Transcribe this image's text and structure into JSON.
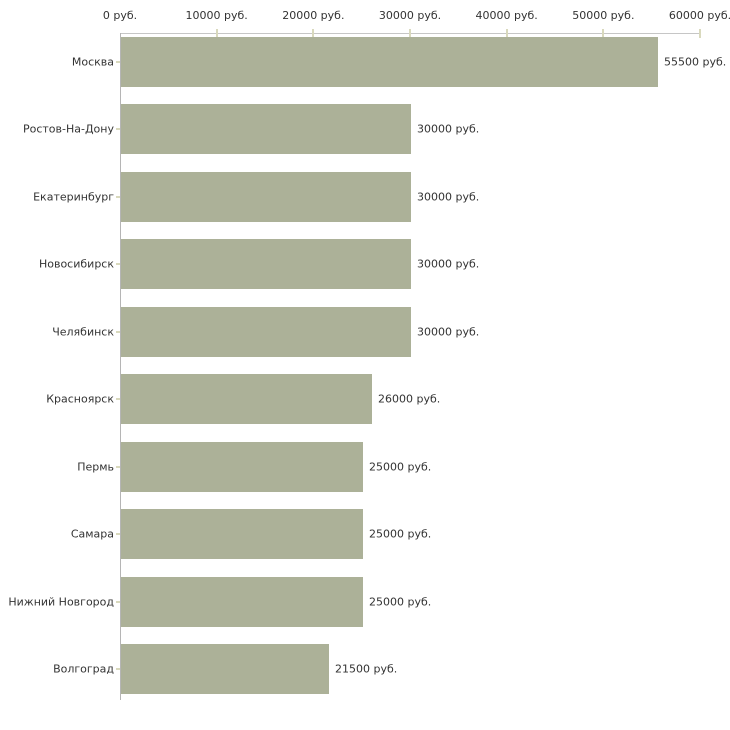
{
  "chart_data": {
    "type": "bar",
    "orientation": "horizontal",
    "title": "",
    "xlabel": "",
    "ylabel": "",
    "categories": [
      "Москва",
      "Ростов-На-Дону",
      "Екатеринбург",
      "Новосибирск",
      "Челябинск",
      "Красноярск",
      "Пермь",
      "Самара",
      "Нижний Новгород",
      "Волгоград"
    ],
    "values": [
      55500,
      30000,
      30000,
      30000,
      30000,
      26000,
      25000,
      25000,
      25000,
      21500
    ],
    "value_labels": [
      "55500 руб.",
      "30000 руб.",
      "30000 руб.",
      "30000 руб.",
      "30000 руб.",
      "26000 руб.",
      "25000 руб.",
      "25000 руб.",
      "25000 руб.",
      "21500 руб."
    ],
    "xlim": [
      0,
      60000
    ],
    "x_ticks": [
      0,
      10000,
      20000,
      30000,
      40000,
      50000,
      60000
    ],
    "x_tick_labels": [
      "0 руб.",
      "10000 руб.",
      "20000 руб.",
      "30000 руб.",
      "40000 руб.",
      "50000 руб.",
      "60000 руб."
    ],
    "grid": "off",
    "legend": "none",
    "colors": {
      "bar": "#acb198",
      "x_axis_line": "#c6c6c6",
      "y_axis_line": "#b5b5b5",
      "tick_mark": "#d9d9bd",
      "text": "#333333",
      "background": "#ffffff"
    }
  }
}
